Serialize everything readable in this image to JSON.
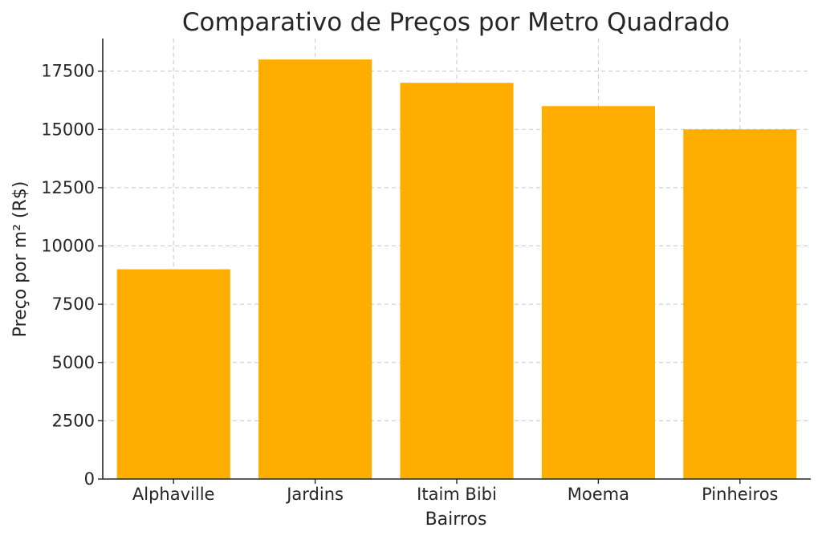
{
  "chart_data": {
    "type": "bar",
    "title": "Comparativo de Preços por Metro Quadrado",
    "xlabel": "Bairros",
    "ylabel": "Preço por m² (R$)",
    "categories": [
      "Alphaville",
      "Jardins",
      "Itaim Bibi",
      "Moema",
      "Pinheiros"
    ],
    "values": [
      9000,
      18000,
      17000,
      16000,
      15000
    ],
    "ylim": [
      0,
      18900
    ],
    "yticks": [
      0,
      2500,
      5000,
      7500,
      10000,
      12500,
      15000,
      17500
    ],
    "grid": true,
    "bar_color": "#ffae00"
  }
}
